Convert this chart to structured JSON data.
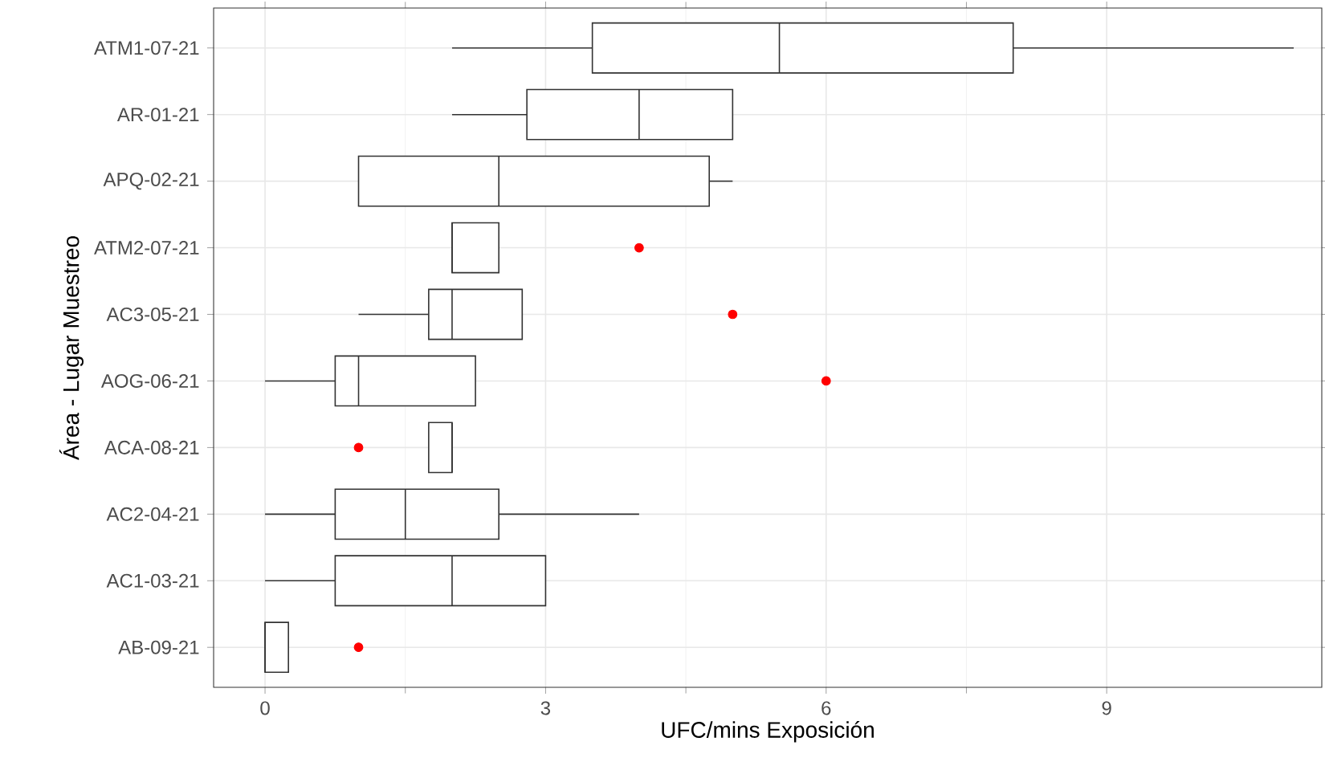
{
  "chart_data": {
    "type": "box",
    "orientation": "horizontal",
    "xlabel": "UFC/mins Exposición",
    "ylabel": "Área - Lugar Muestreo",
    "categories": [
      "ATM1-07-21",
      "AR-01-21",
      "APQ-02-21",
      "ATM2-07-21",
      "AC3-05-21",
      "AOG-06-21",
      "ACA-08-21",
      "AC2-04-21",
      "AC1-03-21",
      "AB-09-21"
    ],
    "xlim": [
      -0.55,
      11.3
    ],
    "xticks": [
      0,
      3,
      6,
      9
    ],
    "grid": true,
    "series": [
      {
        "color": "#333333",
        "boxes": [
          {
            "low": 2,
            "q1": 3.5,
            "median": 5.5,
            "q3": 8,
            "high": 11
          },
          {
            "low": 2,
            "q1": 2.8,
            "median": 4,
            "q3": 5,
            "high": 5
          },
          {
            "low": 1,
            "q1": 1,
            "median": 2.5,
            "q3": 4.75,
            "high": 5
          },
          {
            "low": 2,
            "q1": 2,
            "median": 2,
            "q3": 2.5,
            "high": 2.5
          },
          {
            "low": 1,
            "q1": 1.75,
            "median": 2,
            "q3": 2.75,
            "high": 2.75
          },
          {
            "low": 0,
            "q1": 0.75,
            "median": 1,
            "q3": 2.25,
            "high": 2.25
          },
          {
            "low": 1.75,
            "q1": 1.75,
            "median": 2,
            "q3": 2,
            "high": 2
          },
          {
            "low": 0,
            "q1": 0.75,
            "median": 1.5,
            "q3": 2.5,
            "high": 4
          },
          {
            "low": 0,
            "q1": 0.75,
            "median": 2,
            "q3": 3,
            "high": 3
          },
          {
            "low": 0,
            "q1": 0,
            "median": 0,
            "q3": 0.25,
            "high": 0.25
          }
        ]
      },
      {
        "type": "scatter",
        "color": "#ff0000",
        "marker": "circle",
        "x": [
          "ATM2-07-21",
          "AC3-05-21",
          "AOG-06-21",
          "ACA-08-21",
          "AB-09-21"
        ],
        "values": [
          4,
          5,
          6,
          1,
          1
        ]
      }
    ]
  }
}
